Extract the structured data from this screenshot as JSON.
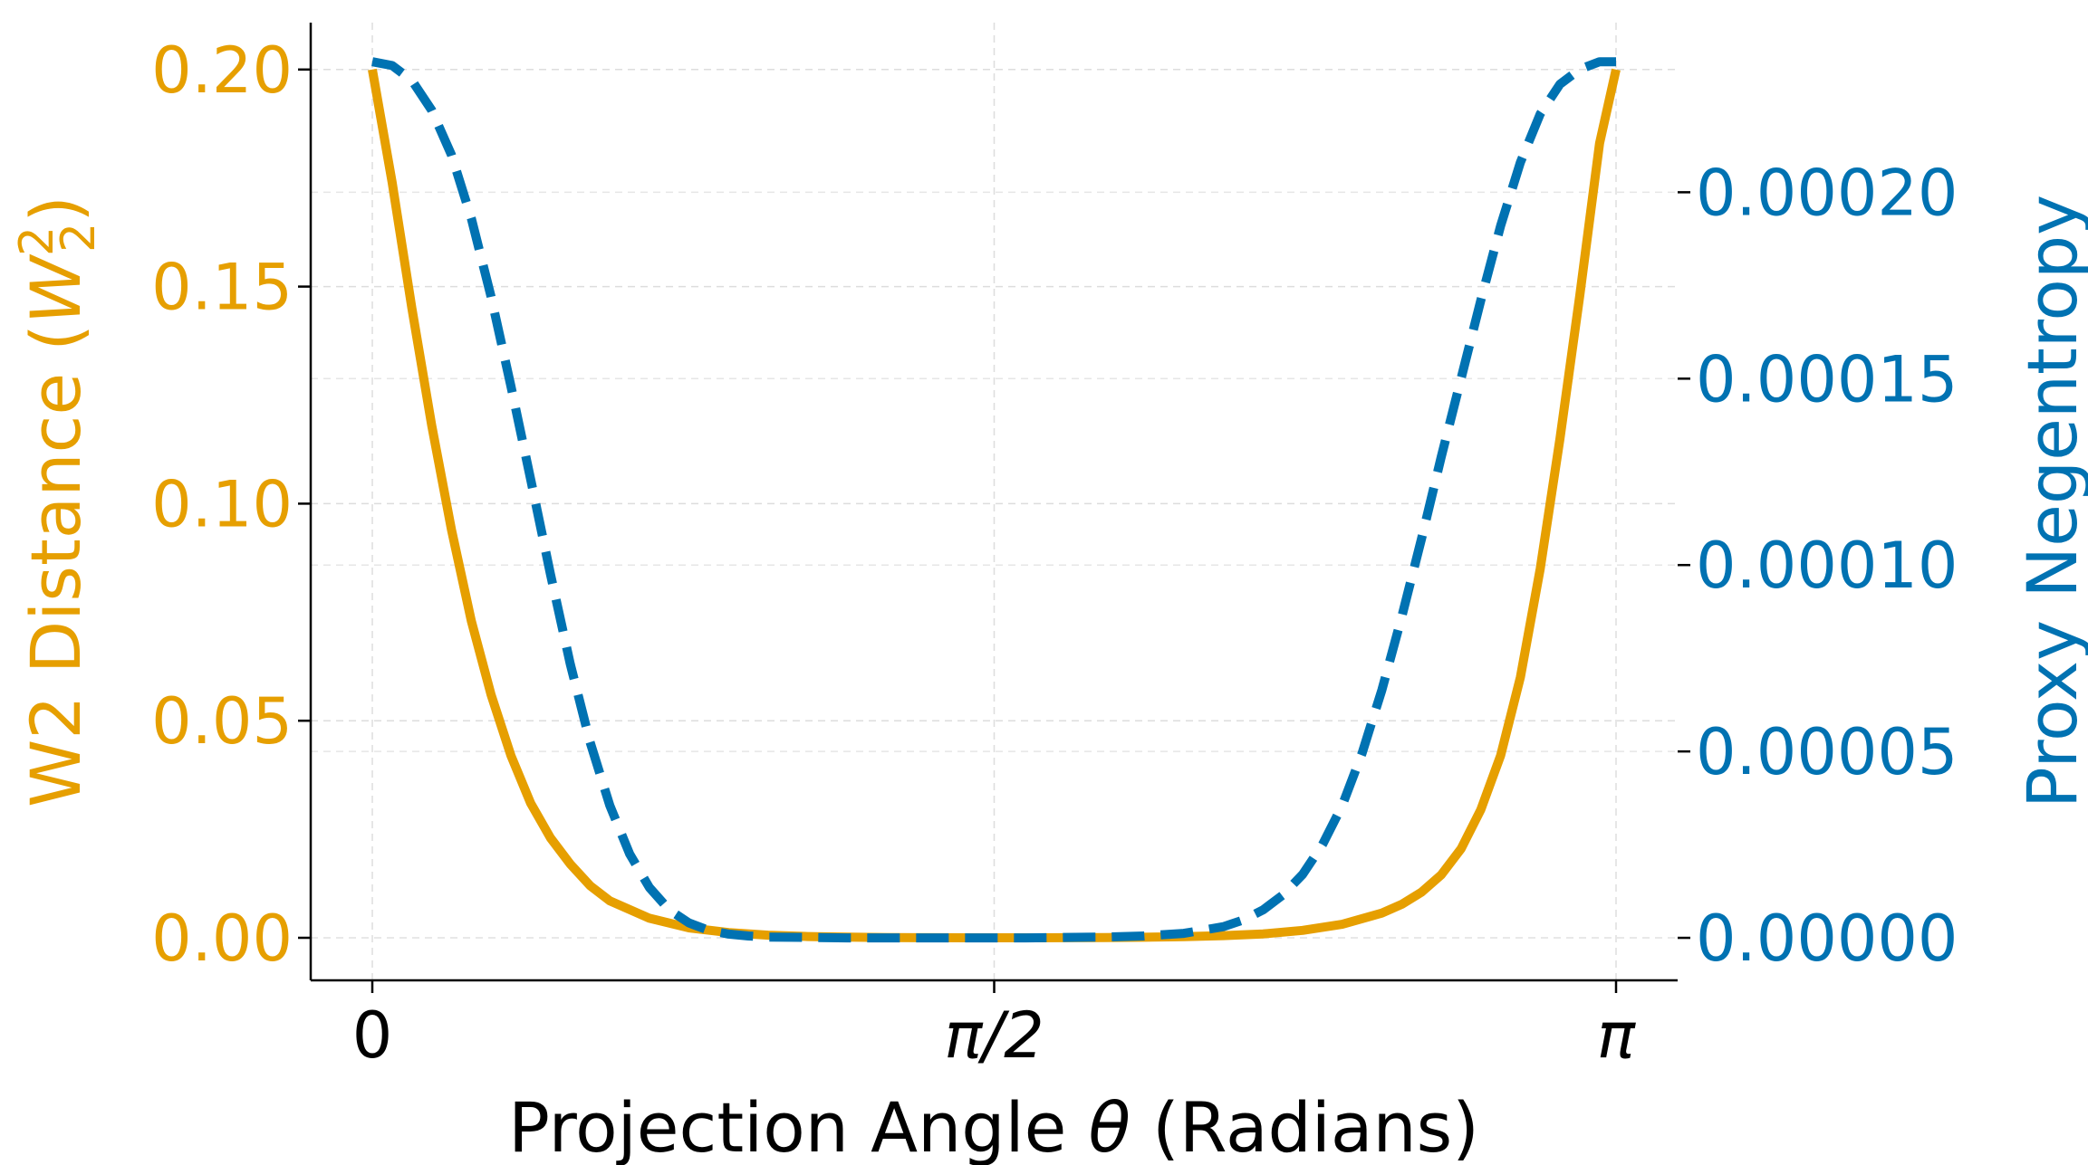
{
  "chart_data": {
    "type": "line",
    "xlabel": "Projection Angle θ (Radians)",
    "xlim": [
      0,
      3.14159265
    ],
    "x_ticks": [
      {
        "value": 0,
        "label": "0"
      },
      {
        "value": 1.5707963,
        "label": "π/2"
      },
      {
        "value": 3.14159265,
        "label": "π"
      }
    ],
    "axes": {
      "left": {
        "label": "W2 Distance (W₂²)",
        "color": "#E69F00",
        "ylim": [
          -0.0098,
          0.2108
        ],
        "ticks": [
          "0.00",
          "0.05",
          "0.10",
          "0.15",
          "0.20"
        ]
      },
      "right": {
        "label": "Proxy Negentropy",
        "color": "#0072B2",
        "ylim": [
          -1.14e-05,
          0.0002455
        ],
        "ticks": [
          "0.00000",
          "0.00005",
          "0.00010",
          "0.00015",
          "0.00020"
        ]
      }
    },
    "series": [
      {
        "axis": "left",
        "style": "solid",
        "color": "#E69F00",
        "x": [
          0,
          0.05,
          0.1,
          0.15,
          0.2,
          0.25,
          0.3,
          0.35,
          0.4,
          0.45,
          0.5,
          0.55,
          0.6,
          0.7,
          0.8,
          0.9,
          1.0,
          1.1,
          1.2,
          1.3,
          1.4,
          1.5,
          1.5708,
          1.65,
          1.75,
          1.85,
          1.95,
          2.05,
          2.15,
          2.25,
          2.35,
          2.45,
          2.55,
          2.6,
          2.65,
          2.7,
          2.75,
          2.8,
          2.85,
          2.9,
          2.95,
          3.0,
          3.05,
          3.1,
          3.1416
        ],
        "y": [
          0.2,
          0.174,
          0.145,
          0.118,
          0.094,
          0.073,
          0.056,
          0.042,
          0.031,
          0.023,
          0.017,
          0.012,
          0.0085,
          0.0045,
          0.0023,
          0.0012,
          0.0006,
          0.0003,
          0.00015,
          7e-05,
          3e-05,
          1e-05,
          0.0,
          1e-05,
          3e-05,
          6e-05,
          0.00012,
          0.00025,
          0.0005,
          0.0009,
          0.0017,
          0.0031,
          0.0057,
          0.0077,
          0.0105,
          0.0145,
          0.0205,
          0.0295,
          0.042,
          0.06,
          0.085,
          0.115,
          0.148,
          0.183,
          0.2
        ]
      },
      {
        "axis": "right",
        "style": "dashed",
        "color": "#0072B2",
        "x": [
          0,
          0.05,
          0.1,
          0.15,
          0.2,
          0.25,
          0.3,
          0.35,
          0.4,
          0.45,
          0.5,
          0.55,
          0.6,
          0.65,
          0.7,
          0.75,
          0.8,
          0.85,
          0.9,
          0.95,
          1.0,
          1.1,
          1.2,
          1.3,
          1.4,
          1.5,
          1.5708,
          1.65,
          1.75,
          1.85,
          1.95,
          2.05,
          2.15,
          2.2,
          2.25,
          2.3,
          2.35,
          2.4,
          2.45,
          2.5,
          2.55,
          2.6,
          2.65,
          2.7,
          2.75,
          2.8,
          2.85,
          2.9,
          2.95,
          3.0,
          3.05,
          3.1,
          3.1416
        ],
        "y": [
          0.000235,
          0.000234,
          0.00023,
          0.000222,
          0.00021,
          0.000193,
          0.000172,
          0.000148,
          0.000123,
          9.75e-05,
          7.35e-05,
          5.25e-05,
          3.55e-05,
          2.25e-05,
          1.35e-05,
          7.5e-06,
          4e-06,
          2e-06,
          1e-06,
          5e-07,
          2e-07,
          1e-07,
          0.0,
          0.0,
          0.0,
          0.0,
          0.0,
          0.0,
          1e-07,
          2e-07,
          5e-07,
          1.2e-06,
          3e-06,
          4.8e-06,
          7.5e-06,
          1.15e-05,
          1.7e-05,
          2.5e-05,
          3.55e-05,
          4.95e-05,
          6.65e-05,
          8.6e-05,
          0.000107,
          0.000129,
          0.00015,
          0.000171,
          0.000191,
          0.000208,
          0.000221,
          0.000229,
          0.000233,
          0.000235,
          0.000235
        ]
      }
    ],
    "grid": true,
    "spines": "left-bottom-only"
  }
}
